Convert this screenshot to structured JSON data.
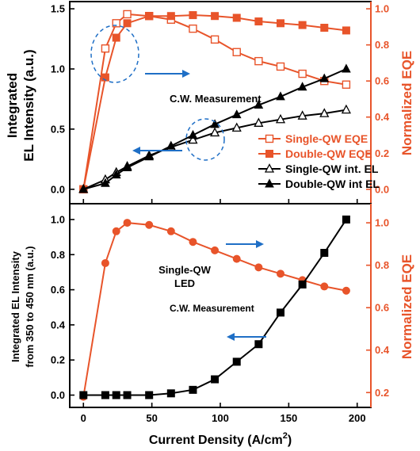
{
  "colors": {
    "orange": "#e8542a",
    "black": "#000000",
    "arrow": "#1f6fc6"
  },
  "chart_data": [
    {
      "type": "line",
      "panel": "top",
      "xlim": [
        -10,
        210
      ],
      "ylim_left": [
        -0.12,
        1.56
      ],
      "ylim_right": [
        -0.08,
        1.04
      ],
      "yticks_left": [
        0.0,
        0.5,
        1.0,
        1.5
      ],
      "yticks_right": [
        0.0,
        0.2,
        0.4,
        0.6,
        0.8,
        1.0
      ],
      "ylabel_line1": "Integrated",
      "ylabel_line2": "EL Intensity (a.u.)",
      "ylabel_right": "Normalized EQE",
      "annotation": "C.W. Measurement",
      "legend_position": "inside-right",
      "series": [
        {
          "name": "Single-QW EQE",
          "axis": "right",
          "color": "#e8542a",
          "marker": "square-open",
          "x": [
            0,
            16,
            24,
            32,
            48,
            64,
            80,
            96,
            112,
            128,
            144,
            160,
            176,
            192
          ],
          "values": [
            0,
            0.78,
            0.92,
            0.97,
            0.96,
            0.94,
            0.89,
            0.83,
            0.76,
            0.71,
            0.68,
            0.64,
            0.6,
            0.58
          ]
        },
        {
          "name": "Double-QW EQE",
          "axis": "right",
          "color": "#e8542a",
          "marker": "square-filled",
          "x": [
            0,
            16,
            24,
            32,
            48,
            64,
            80,
            96,
            112,
            128,
            144,
            160,
            176,
            192
          ],
          "values": [
            0,
            0.62,
            0.84,
            0.92,
            0.96,
            0.96,
            0.965,
            0.96,
            0.95,
            0.93,
            0.92,
            0.91,
            0.895,
            0.88
          ]
        },
        {
          "name": "Single-QW int. EL",
          "axis": "left",
          "color": "#000000",
          "marker": "triangle-open",
          "x": [
            0,
            16,
            24,
            32,
            48,
            64,
            80,
            96,
            112,
            128,
            144,
            160,
            176,
            192
          ],
          "values": [
            0,
            0.08,
            0.14,
            0.19,
            0.28,
            0.35,
            0.41,
            0.47,
            0.51,
            0.55,
            0.58,
            0.61,
            0.63,
            0.66
          ]
        },
        {
          "name": "Double-QW int EL",
          "axis": "left",
          "color": "#000000",
          "marker": "triangle-filled",
          "x": [
            0,
            16,
            24,
            32,
            48,
            64,
            80,
            96,
            112,
            128,
            144,
            160,
            176,
            192
          ],
          "values": [
            0,
            0.05,
            0.12,
            0.18,
            0.27,
            0.36,
            0.45,
            0.54,
            0.62,
            0.7,
            0.77,
            0.85,
            0.92,
            1.0
          ]
        }
      ]
    },
    {
      "type": "line",
      "panel": "bottom",
      "xlim": [
        -10,
        210
      ],
      "ylim_left": [
        -0.07,
        1.09
      ],
      "ylim_right": [
        0.13,
        1.09
      ],
      "yticks_left": [
        0.0,
        0.2,
        0.4,
        0.6,
        0.8,
        1.0
      ],
      "yticks_right": [
        0.2,
        0.4,
        0.6,
        0.8,
        1.0
      ],
      "xticks": [
        0,
        50,
        100,
        150,
        200
      ],
      "xlabel_main": "Current Density (A/cm",
      "xlabel_sup": "2",
      "xlabel_end": ")",
      "ylabel_line1": "Integrated EL Intensity",
      "ylabel_line2": "from 350 to 450 nm (a.u.)",
      "ylabel_right": "Normalized EQE",
      "annotation_line1": "Single-QW",
      "annotation_line2": "LED",
      "annotation2": "C.W. Measurement",
      "series": [
        {
          "axis": "right",
          "color": "#e8542a",
          "marker": "circle-filled",
          "x": [
            0,
            16,
            24,
            32,
            48,
            64,
            80,
            96,
            112,
            128,
            144,
            160,
            176,
            192
          ],
          "values": [
            0.18,
            0.81,
            0.96,
            1.0,
            0.99,
            0.96,
            0.91,
            0.87,
            0.83,
            0.79,
            0.76,
            0.73,
            0.7,
            0.68
          ]
        },
        {
          "axis": "left",
          "color": "#000000",
          "marker": "square-filled",
          "x": [
            0,
            16,
            24,
            32,
            48,
            64,
            80,
            96,
            112,
            128,
            144,
            160,
            176,
            192
          ],
          "values": [
            0,
            0,
            0,
            0,
            0,
            0.01,
            0.03,
            0.09,
            0.19,
            0.29,
            0.47,
            0.63,
            0.81,
            1.0
          ]
        }
      ]
    }
  ]
}
